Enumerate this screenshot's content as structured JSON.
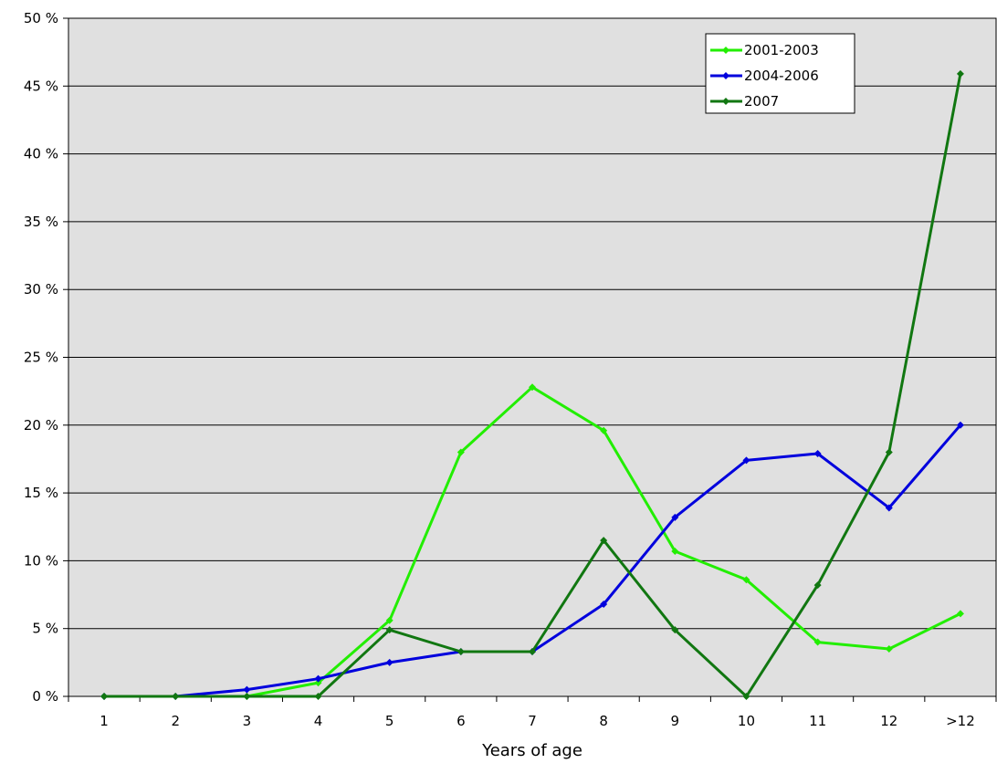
{
  "chart_data": {
    "type": "line",
    "title": "",
    "xlabel": "Years of age",
    "ylabel": "",
    "categories": [
      "1",
      "2",
      "3",
      "4",
      "5",
      "6",
      "7",
      "8",
      "9",
      "10",
      "11",
      "12",
      ">12"
    ],
    "y_ticks": [
      "0 %",
      "5 %",
      "10 %",
      "15 %",
      "20 %",
      "25 %",
      "30 %",
      "35 %",
      "40 %",
      "45 %",
      "50 %"
    ],
    "ylim": [
      0,
      50
    ],
    "grid": true,
    "legend_position": "top-right",
    "plot_background": "#e0e0e0",
    "series": [
      {
        "name": "2001-2003",
        "color": "#22ee00",
        "values": [
          0,
          0,
          0,
          1.0,
          5.6,
          18.0,
          22.8,
          19.6,
          10.7,
          8.6,
          4.0,
          3.5,
          6.1
        ]
      },
      {
        "name": "2004-2006",
        "color": "#0000dd",
        "values": [
          0,
          0,
          0.5,
          1.3,
          2.5,
          3.3,
          3.3,
          6.8,
          13.2,
          17.4,
          17.9,
          13.9,
          20.0
        ]
      },
      {
        "name": "2007",
        "color": "#117711",
        "values": [
          0,
          0,
          0,
          0,
          4.9,
          3.3,
          3.3,
          11.5,
          4.9,
          0,
          8.2,
          18.0,
          45.9
        ]
      }
    ]
  }
}
